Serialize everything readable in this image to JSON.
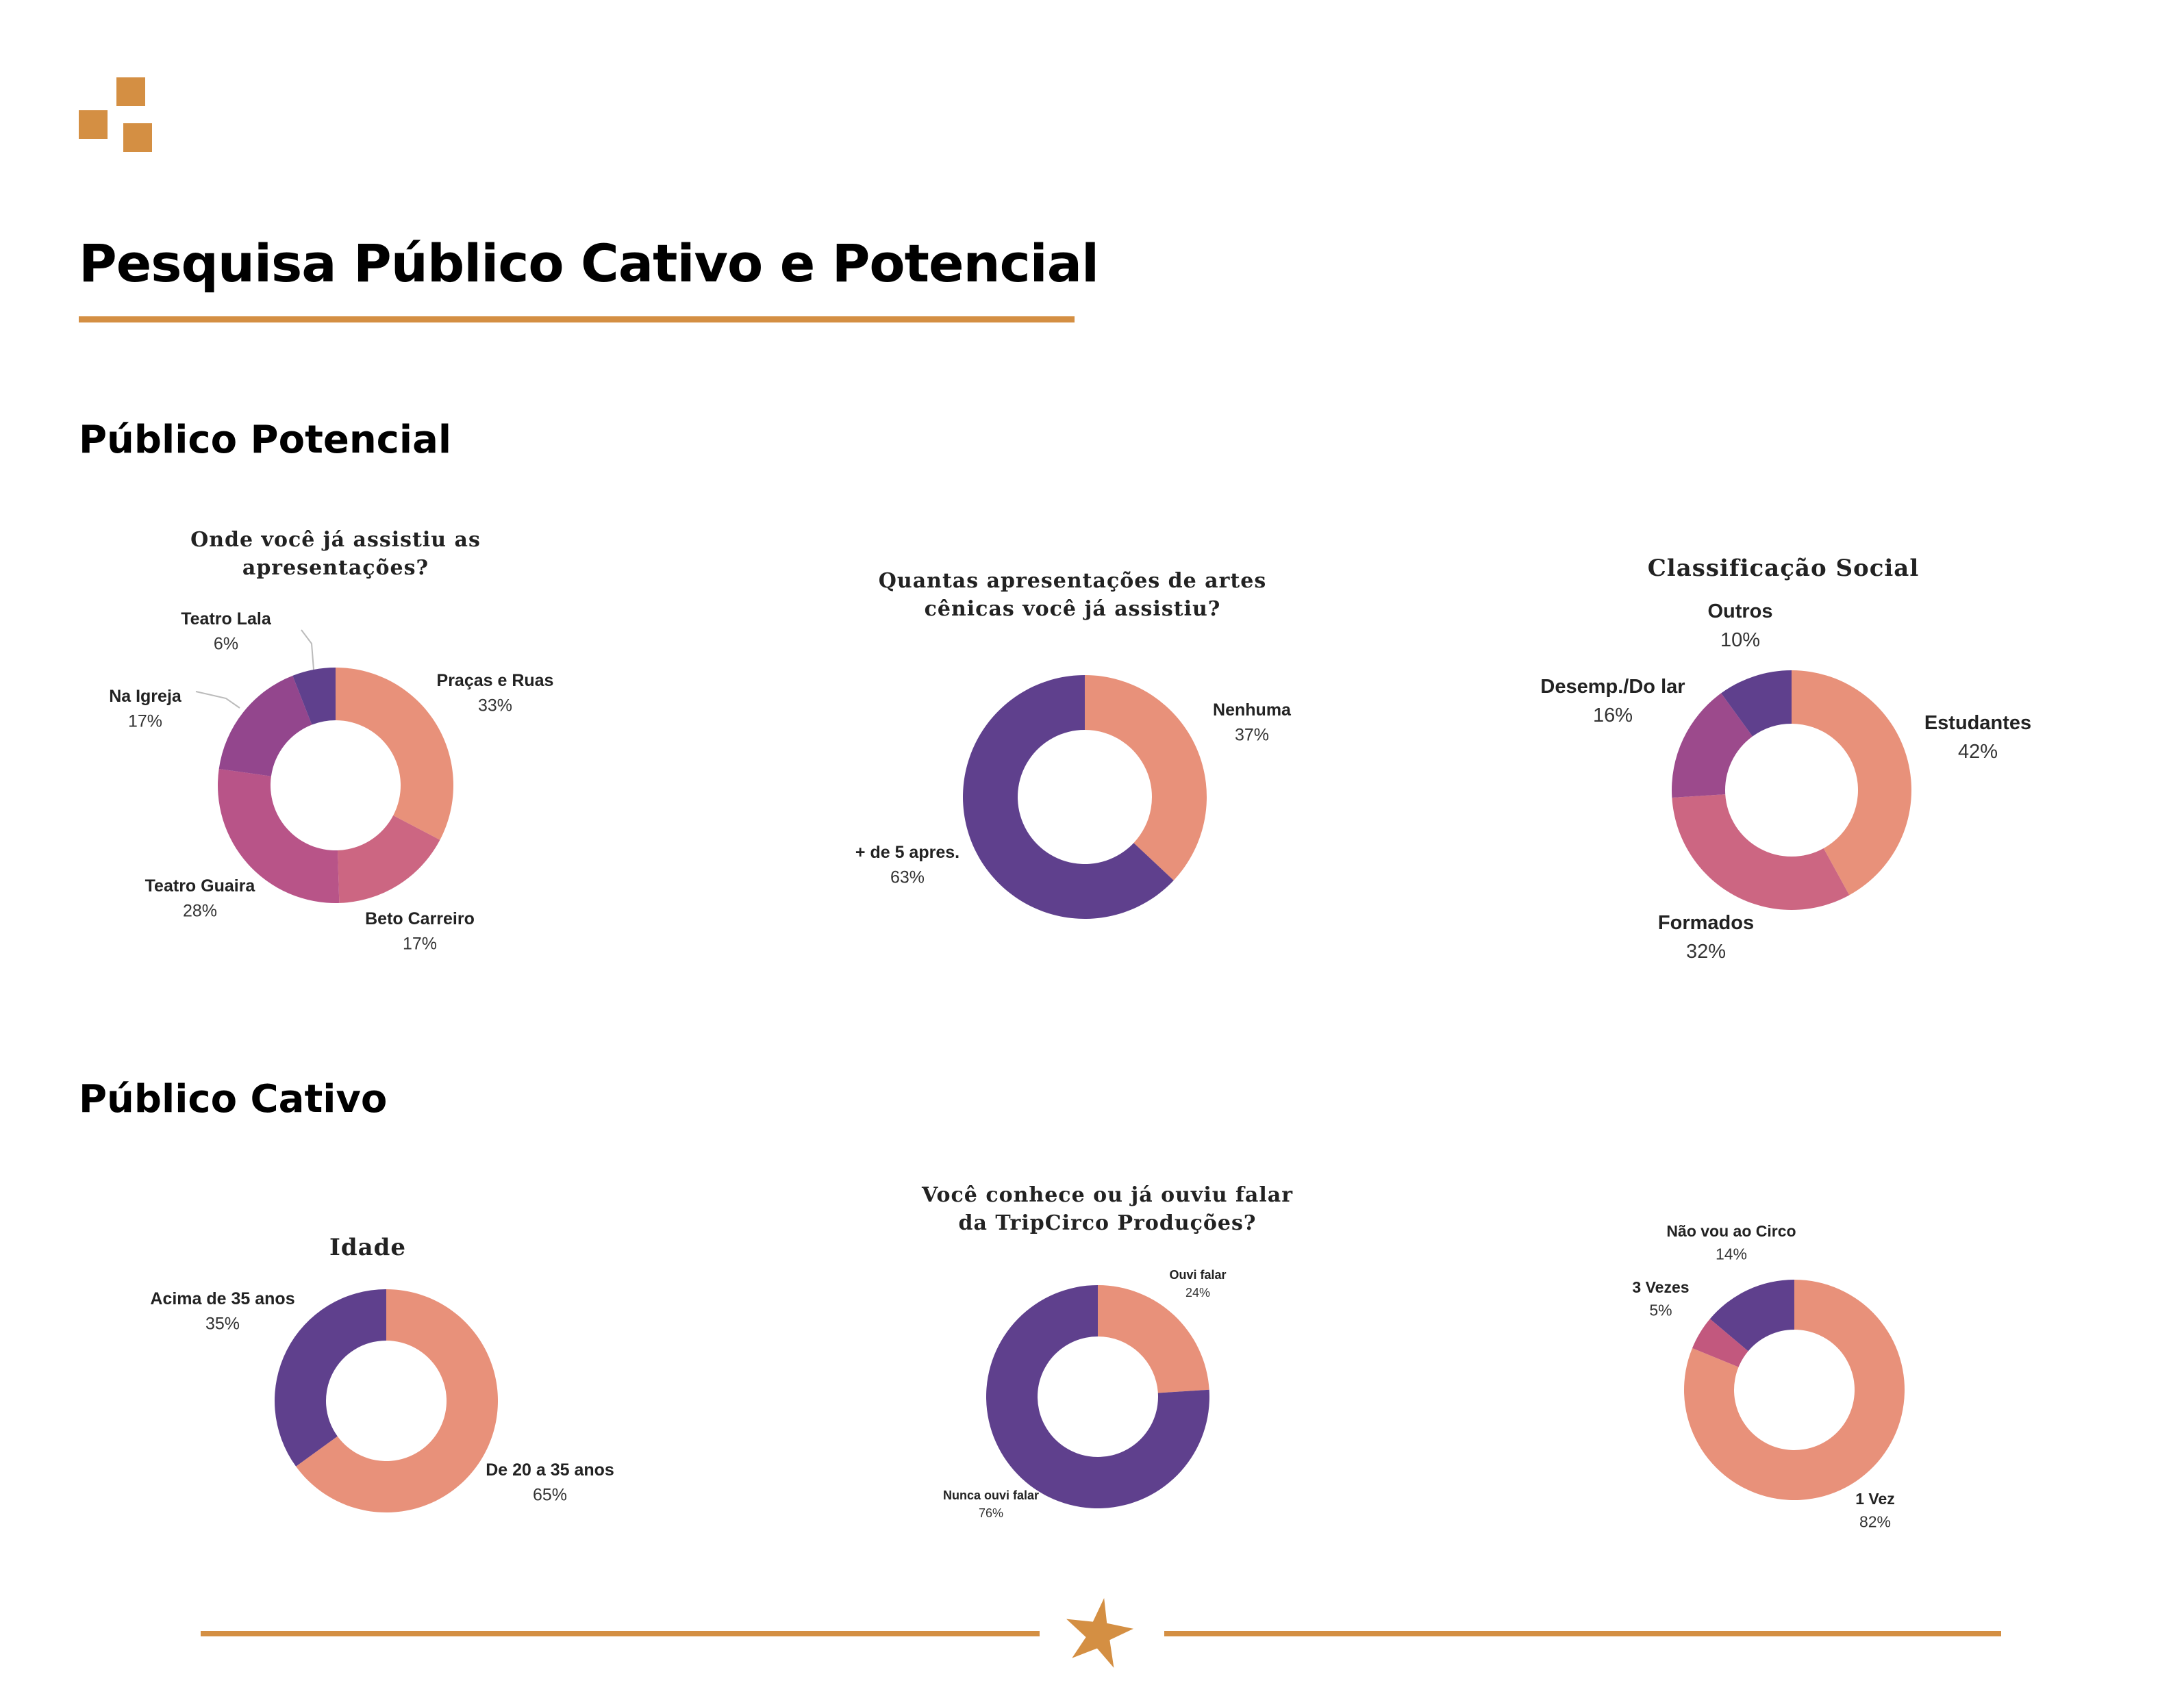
{
  "page": {
    "title": "Pesquisa Público Cativo e Potencial",
    "sections": {
      "potencial": "Público Potencial",
      "cativo": "Público Cativo"
    }
  },
  "colors": {
    "accent": "#d48f43",
    "salmon": "#e8917a",
    "rose": "#cc6682",
    "magenta": "#b85488",
    "plum": "#93468d",
    "purple": "#5f408d"
  },
  "chart_data": [
    {
      "id": "onde",
      "type": "pie",
      "title_lines": [
        "Onde você já assistiu as",
        "apresentações?"
      ],
      "categories": [
        "Praças e Ruas",
        "Beto Carreiro",
        "Teatro Guaira",
        "Na Igreja",
        "Teatro Lala"
      ],
      "values": [
        33,
        17,
        28,
        17,
        6
      ],
      "value_labels": [
        "33%",
        "17%",
        "28%",
        "17%",
        "6%"
      ],
      "colors": [
        "#e8917a",
        "#cc6682",
        "#b85488",
        "#93468d",
        "#5f408d"
      ]
    },
    {
      "id": "quantas",
      "type": "pie",
      "title_lines": [
        "Quantas apresentações de artes",
        "cênicas você já assistiu?"
      ],
      "categories": [
        "Nenhuma",
        "+ de 5 apres."
      ],
      "values": [
        37,
        63
      ],
      "value_labels": [
        "37%",
        "63%"
      ],
      "colors": [
        "#e8917a",
        "#5f408d"
      ]
    },
    {
      "id": "classificacao",
      "type": "pie",
      "title_lines": [
        "Classificação Social"
      ],
      "categories": [
        "Estudantes",
        "Formados",
        "Desemp./Do lar",
        "Outros"
      ],
      "values": [
        42,
        32,
        16,
        10
      ],
      "value_labels": [
        "42%",
        "32%",
        "16%",
        "10%"
      ],
      "colors": [
        "#e8917a",
        "#cc6682",
        "#9c4a8c",
        "#5f408d"
      ]
    },
    {
      "id": "idade",
      "type": "pie",
      "title_lines": [
        "Idade"
      ],
      "categories": [
        "De 20 a 35 anos",
        "Acima de 35 anos"
      ],
      "values": [
        65,
        35
      ],
      "value_labels": [
        "65%",
        "35%"
      ],
      "colors": [
        "#e8917a",
        "#5f408d"
      ]
    },
    {
      "id": "conhece",
      "type": "pie",
      "title_lines": [
        "Você conhece ou já ouviu falar",
        "da TripCirco Produções?"
      ],
      "categories": [
        "Ouvi falar",
        "Nunca ouvi falar"
      ],
      "values": [
        24,
        76
      ],
      "value_labels": [
        "24%",
        "76%"
      ],
      "colors": [
        "#e8917a",
        "#5f408d"
      ]
    },
    {
      "id": "circo",
      "type": "pie",
      "title_lines": [],
      "categories": [
        "1 Vez",
        "3 Vezes",
        "Não vou ao Circo"
      ],
      "values": [
        82,
        5,
        14
      ],
      "value_labels": [
        "82%",
        "5%",
        "14%"
      ],
      "colors": [
        "#e8917a",
        "#c2587e",
        "#5f408d"
      ]
    }
  ]
}
